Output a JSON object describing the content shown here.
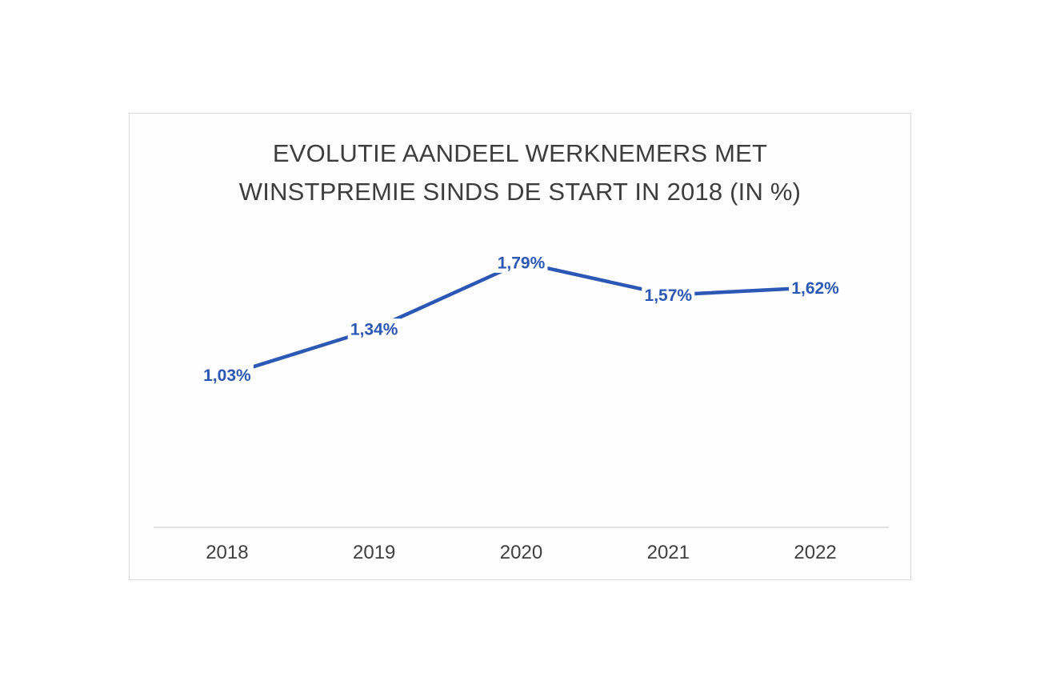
{
  "chart_data": {
    "type": "line",
    "title": "EVOLUTIE AANDEEL WERKNEMERS MET WINSTPREMIE SINDS DE START IN 2018 (IN %)",
    "title_lines": [
      "EVOLUTIE AANDEEL WERKNEMERS MET",
      "WINSTPREMIE SINDS DE START IN 2018 (IN %)"
    ],
    "categories": [
      "2018",
      "2019",
      "2020",
      "2021",
      "2022"
    ],
    "values": [
      1.03,
      1.34,
      1.79,
      1.57,
      1.62
    ],
    "data_labels": [
      "1,03%",
      "1,34%",
      "1,79%",
      "1,57%",
      "1,62%"
    ],
    "xlabel": "",
    "ylabel": "",
    "ylim": [
      0,
      2.2
    ],
    "grid": false,
    "legend": "none",
    "line_color": "#2b57b5",
    "data_label_color": "#2b57b5",
    "data_label_background": "#fefefe",
    "axis_line_color": "#d9d9d9",
    "tick_label_color": "#3f3f3f",
    "title_color": "#3d3d3d",
    "card_border_color": "#d9d9d9",
    "card_background": "#fefefe",
    "page_background": "#ffffff"
  }
}
